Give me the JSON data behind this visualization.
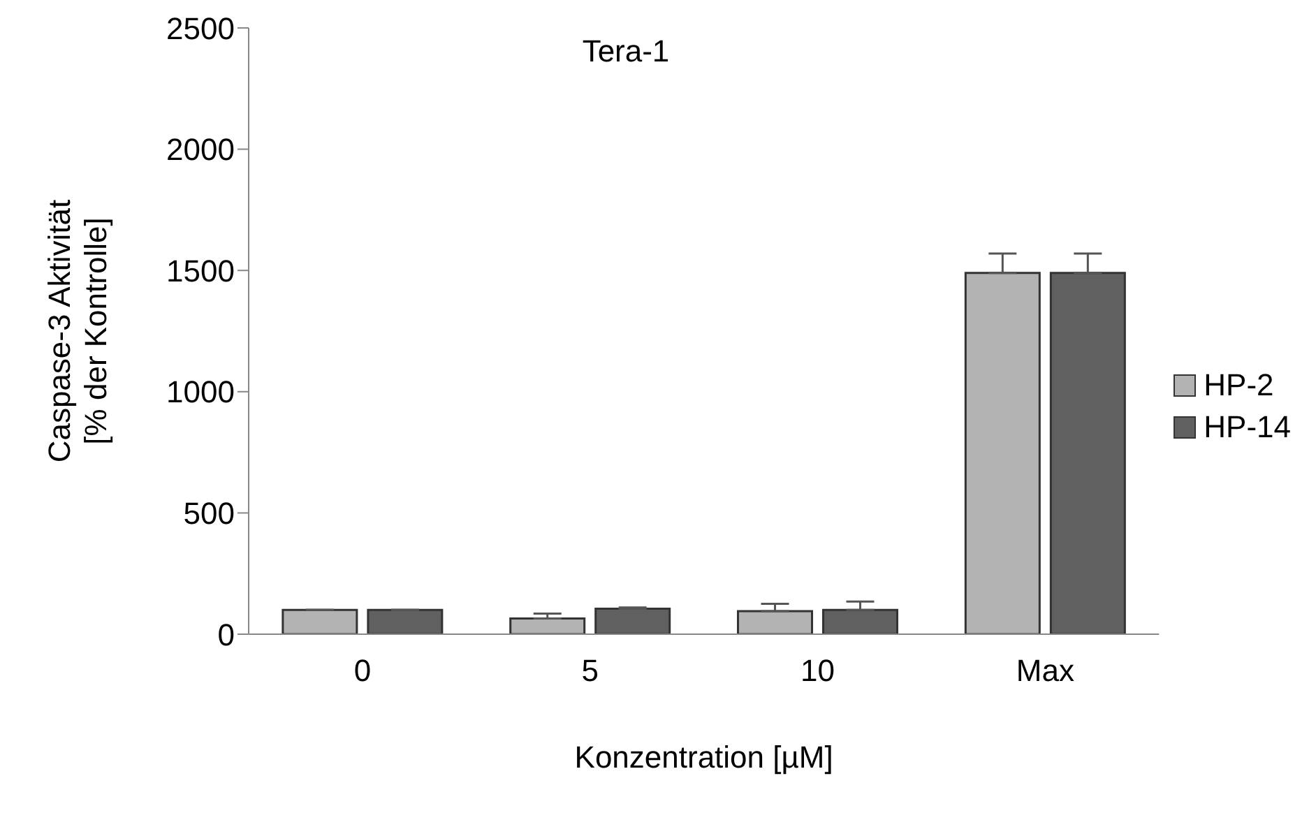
{
  "chart_data": {
    "type": "bar",
    "title": "Tera-1",
    "xlabel": "Konzentration [µM]",
    "ylabel": "Caspase-3 Aktivität\n[% der Kontrolle]",
    "categories": [
      "0",
      "5",
      "10",
      "Max"
    ],
    "series": [
      {
        "name": "HP-2",
        "color": "#b3b3b3",
        "values": [
          100,
          65,
          95,
          1490
        ],
        "errors": [
          null,
          20,
          30,
          80
        ]
      },
      {
        "name": "HP-14",
        "color": "#606060",
        "values": [
          100,
          105,
          100,
          1490
        ],
        "errors": [
          null,
          5,
          35,
          80
        ]
      }
    ],
    "ylim": [
      0,
      2500
    ],
    "yticks": [
      0,
      500,
      1000,
      1500,
      2000,
      2500
    ],
    "grid": false,
    "legend": "right"
  }
}
